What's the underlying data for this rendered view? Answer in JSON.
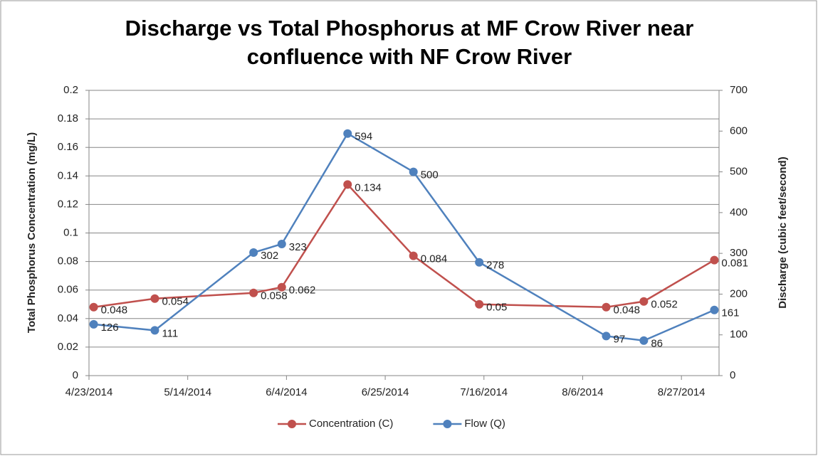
{
  "chart_data": {
    "type": "line",
    "title": "Discharge vs Total Phosphorus at MF Crow River near confluence with NF Crow River",
    "y_label": "Total Phosphorus Concentration (mg/L)",
    "y2_label": "Discharge (cubic feet/second)",
    "x": [
      "4/24/2014",
      "5/7/2014",
      "5/28/2014",
      "6/3/2014",
      "6/17/2014",
      "7/1/2014",
      "7/15/2014",
      "8/11/2014",
      "8/19/2014",
      "9/3/2014"
    ],
    "xlim": [
      "4/23/2014",
      "9/4/2014"
    ],
    "xticks": [
      "4/23/2014",
      "5/14/2014",
      "6/4/2014",
      "6/25/2014",
      "7/16/2014",
      "8/6/2014",
      "8/27/2014"
    ],
    "ylim": [
      0,
      0.2
    ],
    "yticks": [
      0,
      0.02,
      0.04,
      0.06,
      0.08,
      0.1,
      0.12,
      0.14,
      0.16,
      0.18,
      0.2
    ],
    "y2lim": [
      0,
      700
    ],
    "y2ticks": [
      0,
      100,
      200,
      300,
      400,
      500,
      600,
      700
    ],
    "grid": true,
    "legend": "bottom",
    "series": [
      {
        "name": "Concentration (C)",
        "color": "#c0504d",
        "values": [
          0.048,
          0.054,
          0.058,
          0.062,
          0.134,
          0.084,
          0.05,
          0.048,
          0.052,
          0.081
        ]
      },
      {
        "name": "Flow (Q)",
        "color": "#4f81bd",
        "axis": "y2",
        "values": [
          126,
          111,
          302,
          323,
          594,
          500,
          278,
          97,
          86,
          161
        ]
      }
    ]
  }
}
